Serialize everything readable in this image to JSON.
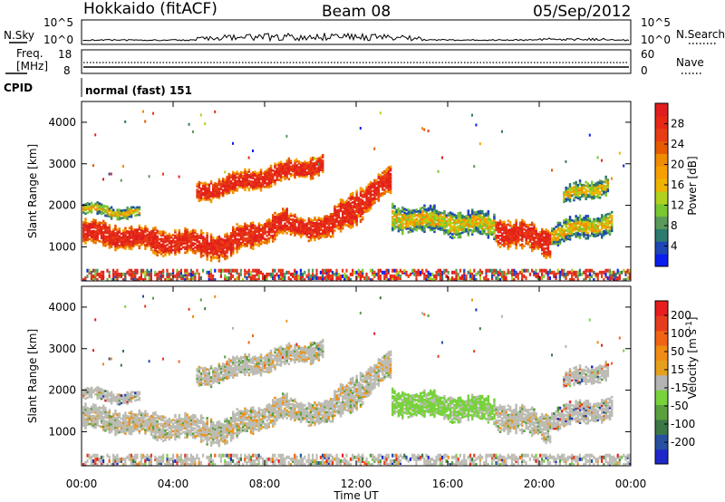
{
  "header": {
    "station": "Hokkaido (fitACF)",
    "beam": "Beam 08",
    "date": "05/Sep/2012"
  },
  "noise_panel": {
    "left_label": "N.Sky",
    "right_label": "N.Search",
    "left_ticks": [
      "10^5",
      "10^0"
    ],
    "right_ticks": [
      "10^5",
      "10^0"
    ]
  },
  "freq_panel": {
    "left_label_1": "Freq.",
    "left_label_2": "[MHz]",
    "right_label": "Nave",
    "left_ticks": [
      "18",
      "8"
    ],
    "right_ticks": [
      "60",
      "0"
    ]
  },
  "cpid_panel": {
    "label": "CPID",
    "text": "normal (fast) 151"
  },
  "chart_data": [
    {
      "type": "heatmap",
      "title": "",
      "xlabel": "",
      "ylabel": "Slant Range [km]",
      "x_ticks": [
        "00:00",
        "04:00",
        "08:00",
        "12:00",
        "16:00",
        "20:00",
        "00:00"
      ],
      "y_ticks": [
        "1000",
        "2000",
        "3000",
        "4000"
      ],
      "ylim": [
        180,
        4500
      ],
      "colorbar": {
        "label": "Power [dB]",
        "ticks": [
          "4",
          "8",
          "12",
          "16",
          "20",
          "24",
          "28"
        ],
        "colors": [
          "#0a1ef0",
          "#1e46b4",
          "#2d7a6e",
          "#5a9a5a",
          "#79c832",
          "#b0d21e",
          "#f0b400",
          "#f5a000",
          "#f08c00",
          "#e65a00",
          "#e83c14",
          "#e62814",
          "#e01e1e"
        ]
      }
    },
    {
      "type": "heatmap",
      "title": "",
      "xlabel": "Time UT",
      "ylabel": "Slant Range [km]",
      "x_ticks": [
        "00:00",
        "04:00",
        "08:00",
        "12:00",
        "16:00",
        "20:00",
        "00:00"
      ],
      "y_ticks": [
        "1000",
        "2000",
        "3000",
        "4000"
      ],
      "ylim": [
        180,
        4500
      ],
      "colorbar": {
        "label": "Velocity [m s^-1]",
        "ticks": [
          "200",
          "100",
          "50",
          "15",
          "-15",
          "-50",
          "-100",
          "-200"
        ],
        "colors": [
          "#1e28c8",
          "#2850a0",
          "#3c7846",
          "#5aa03c",
          "#78d23c",
          "#b4b4b4",
          "#e6a01e",
          "#f08c14",
          "#f06414",
          "#e63c1e",
          "#e61e1e"
        ]
      }
    }
  ]
}
